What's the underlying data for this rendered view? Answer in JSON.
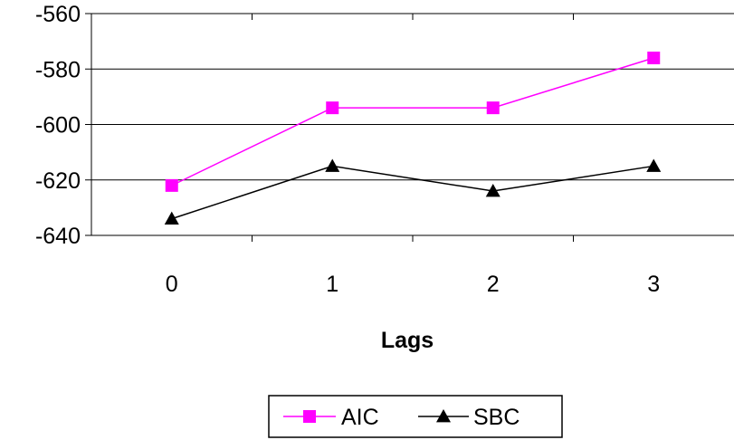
{
  "chart_data": {
    "type": "line",
    "title": "",
    "xlabel": "Lags",
    "ylabel": "",
    "categories": [
      "0",
      "1",
      "2",
      "3"
    ],
    "ylim": [
      -640,
      -560
    ],
    "yticks": [
      -560,
      -580,
      -600,
      -620,
      -640
    ],
    "grid": true,
    "legend_position": "bottom",
    "series": [
      {
        "name": "AIC",
        "values": [
          -622,
          -594,
          -594,
          -576
        ],
        "color": "#ff00ff",
        "marker": "square"
      },
      {
        "name": "SBC",
        "values": [
          -634,
          -615,
          -624,
          -615
        ],
        "color": "#000000",
        "marker": "triangle"
      }
    ]
  }
}
